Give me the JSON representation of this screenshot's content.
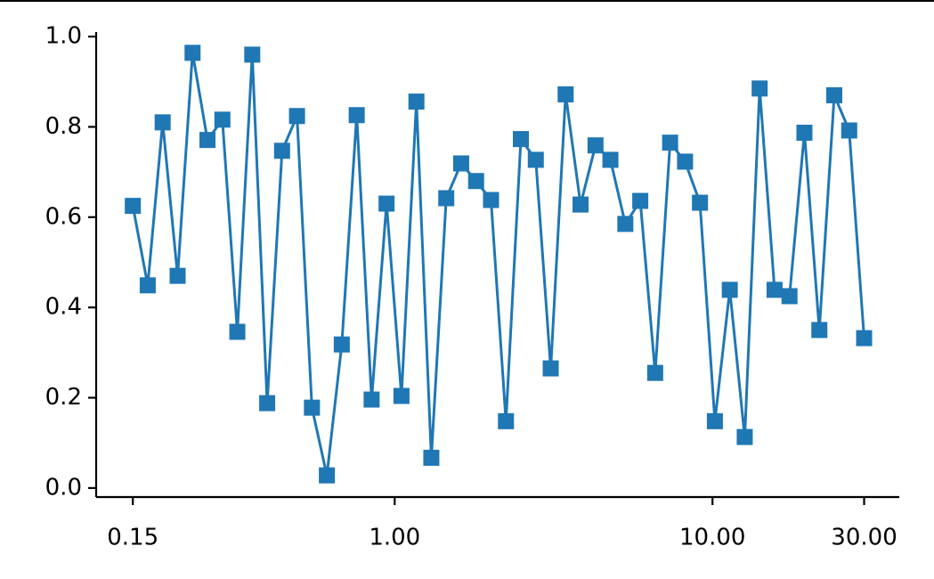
{
  "chart_data": {
    "type": "line",
    "xscale": "log",
    "marker": "square",
    "x": [
      0.15,
      0.1671,
      0.1862,
      0.2075,
      0.2312,
      0.2576,
      0.287,
      0.3198,
      0.3563,
      0.397,
      0.4423,
      0.4928,
      0.5491,
      0.6118,
      0.6816,
      0.7595,
      0.8462,
      0.9428,
      1.0505,
      1.1705,
      1.3041,
      1.453,
      1.6189,
      1.8038,
      2.0098,
      2.2393,
      2.495,
      2.7799,
      3.0973,
      3.451,
      3.845,
      4.2841,
      4.7733,
      5.3183,
      5.9256,
      6.6022,
      7.3561,
      8.1961,
      9.132,
      10.175,
      11.336,
      12.631,
      14.073,
      15.68,
      17.47,
      19.465,
      21.687,
      24.164,
      26.923,
      30.0
    ],
    "series": [
      {
        "color": "#1f77b4",
        "values": [
          0.625,
          0.449,
          0.81,
          0.47,
          0.964,
          0.771,
          0.816,
          0.346,
          0.96,
          0.188,
          0.747,
          0.824,
          0.178,
          0.028,
          0.318,
          0.826,
          0.196,
          0.63,
          0.204,
          0.856,
          0.067,
          0.642,
          0.719,
          0.68,
          0.638,
          0.148,
          0.773,
          0.727,
          0.265,
          0.872,
          0.628,
          0.759,
          0.727,
          0.585,
          0.636,
          0.255,
          0.765,
          0.723,
          0.632,
          0.148,
          0.439,
          0.113,
          0.885,
          0.439,
          0.425,
          0.787,
          0.35,
          0.87,
          0.792,
          0.332
        ]
      }
    ],
    "xlim": [
      0.115,
      38.7
    ],
    "ylim": [
      -0.02,
      1.01
    ],
    "xticks": [
      {
        "value": 0.15,
        "label": "0.15"
      },
      {
        "value": 1,
        "label": "1.00"
      },
      {
        "value": 10,
        "label": "10.00"
      },
      {
        "value": 30,
        "label": "30.00"
      }
    ],
    "yticks": [
      {
        "value": 0,
        "label": "0.0"
      },
      0.2,
      0.4,
      0.6,
      0.8,
      {
        "value": 1,
        "label": "1.0"
      }
    ],
    "grid": false
  }
}
